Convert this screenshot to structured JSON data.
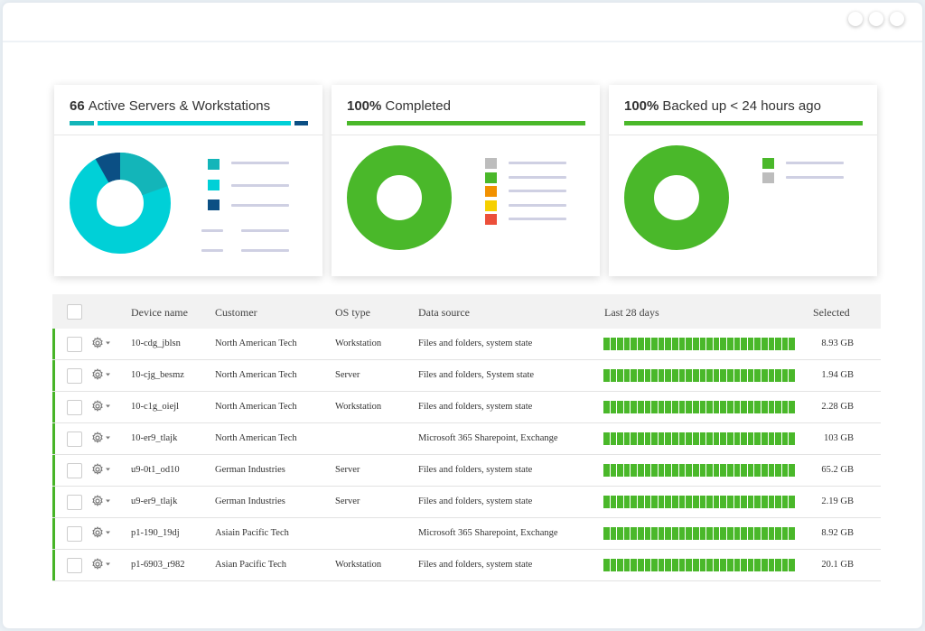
{
  "colors": {
    "green": "#4ab82a",
    "cyan": "#00d0d7",
    "teal": "#13b5b9",
    "navy": "#0b4f84"
  },
  "cards": [
    {
      "title_num": "66",
      "title_text": "Active Servers & Workstations"
    },
    {
      "title_num": "100%",
      "title_text": "Completed"
    },
    {
      "title_num": "100%",
      "title_text": "Backed up < 24 hours ago"
    }
  ],
  "table": {
    "headers": {
      "device": "Device name",
      "customer": "Customer",
      "os": "OS type",
      "source": "Data source",
      "days": "Last 28 days",
      "selected": "Selected"
    },
    "rows": [
      {
        "device": "10-cdg_jblsn",
        "customer": "North American Tech",
        "os": "Workstation",
        "source": "Files and folders, system state",
        "selected": "8.93 GB"
      },
      {
        "device": "10-cjg_besmz",
        "customer": "North American Tech",
        "os": "Server",
        "source": "Files and folders, System state",
        "selected": "1.94 GB"
      },
      {
        "device": "10-c1g_oiejl",
        "customer": "North American Tech",
        "os": "Workstation",
        "source": "Files and folders, system state",
        "selected": "2.28 GB"
      },
      {
        "device": "10-er9_tlajk",
        "customer": "North American Tech",
        "os": "",
        "source": "Microsoft 365 Sharepoint, Exchange",
        "selected": "103 GB"
      },
      {
        "device": "u9-0t1_od10",
        "customer": "German Industries",
        "os": "Server",
        "source": "Files and folders, system state",
        "selected": "65.2 GB"
      },
      {
        "device": "u9-er9_tlajk",
        "customer": "German Industries",
        "os": "Server",
        "source": "Files and folders, system state",
        "selected": "2.19 GB"
      },
      {
        "device": "p1-190_19dj",
        "customer": "Asiain Pacific Tech",
        "os": "",
        "source": "Microsoft 365 Sharepoint, Exchange",
        "selected": "8.92 GB"
      },
      {
        "device": "p1-6903_r982",
        "customer": "Asian Pacific Tech",
        "os": "Workstation",
        "source": "Files and folders, system state",
        "selected": "20.1 GB"
      }
    ]
  }
}
